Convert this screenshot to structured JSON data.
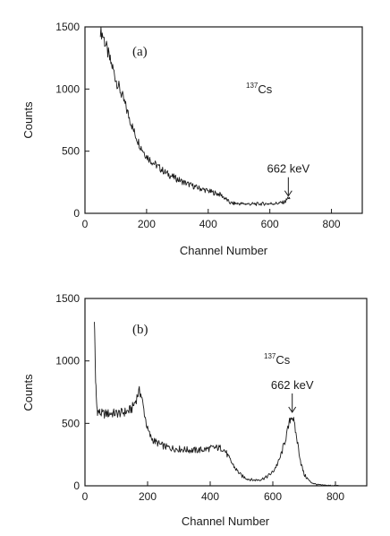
{
  "chart_data": [
    {
      "type": "line",
      "panel_label": "(a)",
      "isotope": {
        "mass": "137",
        "symbol": "Cs"
      },
      "xlabel": "Channel Number",
      "ylabel": "Counts",
      "xlim": [
        0,
        900
      ],
      "ylim": [
        0,
        1500
      ],
      "xticks": [
        0,
        200,
        400,
        600,
        800
      ],
      "yticks": [
        0,
        500,
        1000,
        1500
      ],
      "annotation": {
        "text": "662 keV",
        "x": 660,
        "y": 110
      },
      "series": [
        {
          "x": [
            50,
            60,
            70,
            80,
            90,
            100,
            120,
            140,
            160,
            180,
            200,
            220,
            240,
            260,
            280,
            300,
            320,
            340,
            360,
            380,
            400,
            420,
            440,
            460,
            470,
            480,
            500,
            520,
            540,
            560,
            580,
            600,
            620,
            640,
            650,
            655,
            660,
            665
          ],
          "values": [
            1480,
            1420,
            1330,
            1240,
            1170,
            1080,
            950,
            800,
            650,
            540,
            460,
            410,
            370,
            330,
            300,
            275,
            250,
            230,
            210,
            195,
            180,
            165,
            150,
            110,
            85,
            80,
            78,
            76,
            75,
            75,
            77,
            78,
            80,
            85,
            95,
            110,
            130,
            115
          ]
        }
      ]
    },
    {
      "type": "line",
      "panel_label": "(b)",
      "isotope": {
        "mass": "137",
        "symbol": "Cs"
      },
      "xlabel": "Channel Number",
      "ylabel": "Counts",
      "xlim": [
        0,
        900
      ],
      "ylim": [
        0,
        1500
      ],
      "xticks": [
        0,
        200,
        400,
        600,
        800
      ],
      "yticks": [
        0,
        500,
        1000,
        1500
      ],
      "annotation": {
        "text": "662 keV",
        "x": 662,
        "y": 560
      },
      "series": [
        {
          "x": [
            30,
            32,
            34,
            36,
            38,
            40,
            45,
            50,
            60,
            80,
            100,
            120,
            140,
            150,
            160,
            170,
            175,
            180,
            190,
            200,
            210,
            220,
            240,
            260,
            280,
            300,
            320,
            340,
            360,
            380,
            400,
            420,
            440,
            450,
            460,
            480,
            500,
            520,
            540,
            560,
            580,
            600,
            620,
            630,
            640,
            650,
            655,
            660,
            665,
            670,
            680,
            690,
            700,
            720,
            740,
            760,
            780,
            800,
            810
          ],
          "values": [
            1350,
            1100,
            850,
            700,
            630,
            600,
            590,
            580,
            575,
            580,
            580,
            585,
            600,
            620,
            670,
            740,
            760,
            720,
            580,
            450,
            390,
            360,
            330,
            310,
            300,
            295,
            290,
            285,
            285,
            290,
            300,
            305,
            300,
            270,
            220,
            140,
            80,
            55,
            45,
            50,
            70,
            110,
            200,
            280,
            370,
            470,
            530,
            560,
            540,
            470,
            330,
            180,
            90,
            30,
            10,
            5,
            3,
            2,
            2
          ]
        }
      ]
    }
  ]
}
